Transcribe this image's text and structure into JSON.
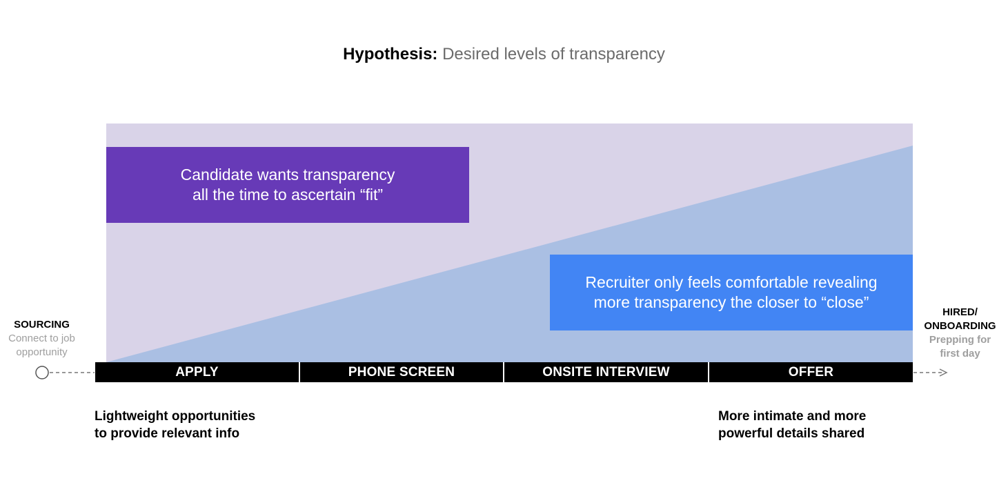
{
  "title": {
    "bold": "Hypothesis:",
    "rest": "Desired levels of transparency"
  },
  "colors": {
    "candidate_area": "#d9d3e8",
    "recruiter_area": "#aabfe3",
    "candidate_box": "#673ab7",
    "recruiter_box": "#4285f4",
    "stage_bar": "#000000",
    "muted_text": "#9e9e9e"
  },
  "candidate_box": {
    "text": "Candidate wants transparency\nall the time to ascertain “fit”"
  },
  "recruiter_box": {
    "text": "Recruiter only feels comfortable revealing\nmore transparency the closer to “close”"
  },
  "start_node": {
    "head": "SOURCING",
    "desc": "Connect to job\nopportunity"
  },
  "end_node": {
    "head": "HIRED/\nONBOARDING",
    "desc": "Prepping for\nfirst day"
  },
  "stages": [
    "APPLY",
    "PHONE SCREEN",
    "ONSITE INTERVIEW",
    "OFFER"
  ],
  "notes": {
    "left": "Lightweight opportunities\nto provide relevant info",
    "right": "More intimate and more\npowerful details shared"
  }
}
